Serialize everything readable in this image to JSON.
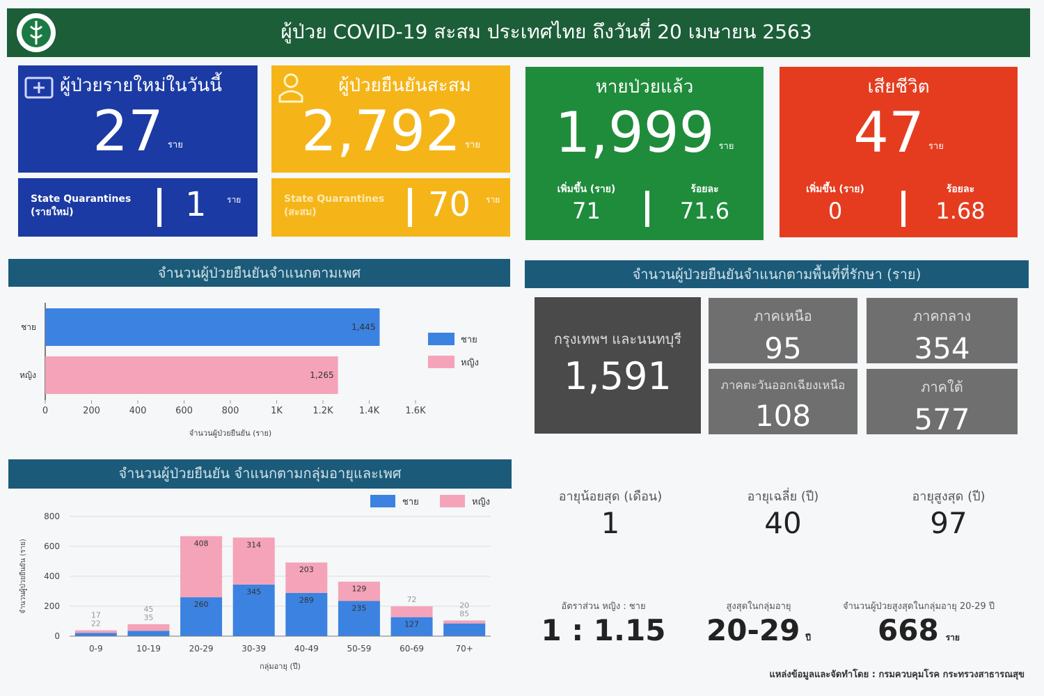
{
  "header": {
    "title": "ผู้ป่วย COVID-19 สะสม  ประเทศไทย ถึงวันที่ 20 เมษายน 2563"
  },
  "cards": [
    {
      "title": "ผู้ป่วยรายใหม่ในวันนี้",
      "value": "27",
      "unit": "ราย",
      "sub_label": "State Quarantines (รายใหม่)",
      "sub_value": "1",
      "sub_unit": "ราย"
    },
    {
      "title": "ผู้ป่วยยืนยันสะสม",
      "value": "2,792",
      "unit": "ราย",
      "sub_label": "State Quarantines (สะสม)",
      "sub_value": "70",
      "sub_unit": "ราย"
    },
    {
      "title": "หายป่วยแล้ว",
      "value": "1,999",
      "unit": "ราย",
      "items": [
        {
          "label": "เพิ่มขึ้น (ราย)",
          "value": "71"
        },
        {
          "label": "ร้อยละ",
          "value": "71.6"
        }
      ]
    },
    {
      "title": "เสียชีวิต",
      "value": "47",
      "unit": "ราย",
      "items": [
        {
          "label": "เพิ่มขึ้น (ราย)",
          "value": "0"
        },
        {
          "label": "ร้อยละ",
          "value": "1.68"
        }
      ]
    }
  ],
  "regions": {
    "title": "จำนวนผู้ป่วยยืนยันจำแนกตามพื้นที่ที่รักษา (ราย)",
    "items": [
      {
        "name": "กรุงเทพฯ และนนทบุรี",
        "value": "1,591"
      },
      {
        "name": "ภาคเหนือ",
        "value": "95"
      },
      {
        "name": "ภาคกลาง",
        "value": "354"
      },
      {
        "name": "ภาคตะวันออกเฉียงเหนือ",
        "value": "108"
      },
      {
        "name": "ภาคใต้",
        "value": "577"
      }
    ]
  },
  "age_stats": [
    {
      "label": "อายุน้อยสุด (เดือน)",
      "value": "1"
    },
    {
      "label": "อายุเฉลี่ย (ปี)",
      "value": "40"
    },
    {
      "label": "อายุสูงสุด (ปี)",
      "value": "97"
    }
  ],
  "summary": [
    {
      "label": "อัตราส่วน หญิง : ชาย",
      "value": "1 : 1.15"
    },
    {
      "label": "สูงสุดในกลุ่มอายุ",
      "value": "20-29",
      "unit": "ปี"
    },
    {
      "label": "จำนวนผู้ป่วยสูงสุดในกลุ่มอายุ 20-29 ปี",
      "value": "668",
      "unit": "ราย"
    }
  ],
  "footer": "แหล่งข้อมูลและจัดทำโดย : กรมควบคุมโรค กระทรวงสาธารณสุข",
  "chart_data": [
    {
      "type": "hbar",
      "title": "จำนวนผู้ป่วยยืนยันจำแนกตามเพศ",
      "categories": [
        "ชาย",
        "หญิง"
      ],
      "values": [
        1445,
        1265
      ],
      "value_labels": [
        "1,445",
        "1,265"
      ],
      "colors": [
        "#3c82e0",
        "#f4a3b8"
      ],
      "xlim": [
        0,
        1600
      ],
      "xticks": [
        0,
        200,
        400,
        600,
        800,
        {
          "value": 1000,
          "label": "1K"
        },
        {
          "value": 1200,
          "label": "1.2K"
        },
        {
          "value": 1400,
          "label": "1.4K"
        },
        {
          "value": 1600,
          "label": "1.6K"
        }
      ],
      "xlabel": "จำนวนผู้ป่วยยืนยัน (ราย)",
      "legend": "right"
    },
    {
      "type": "stacked_bar",
      "title": "จำนวนผู้ป่วยยืนยัน จำแนกตามกลุ่มอายุและเพศ",
      "categories": [
        "0-9",
        "10-19",
        "20-29",
        "30-39",
        "40-49",
        "50-59",
        "60-69",
        "70+"
      ],
      "series": [
        {
          "name": "ชาย",
          "color": "#3c82e0",
          "values": [
            22,
            35,
            260,
            345,
            289,
            235,
            127,
            85
          ]
        },
        {
          "name": "หญิง",
          "color": "#f4a3b8",
          "values": [
            17,
            45,
            408,
            314,
            203,
            129,
            72,
            20
          ]
        }
      ],
      "ylim": [
        0,
        800
      ],
      "yticks": [
        0,
        200,
        400,
        600,
        800
      ],
      "ylabel": "จำนวนผู้ป่วยยืนยัน (ราย)",
      "xlabel": "กลุ่มอายุ (ปี)",
      "grid": true,
      "legend": "top-right"
    }
  ]
}
